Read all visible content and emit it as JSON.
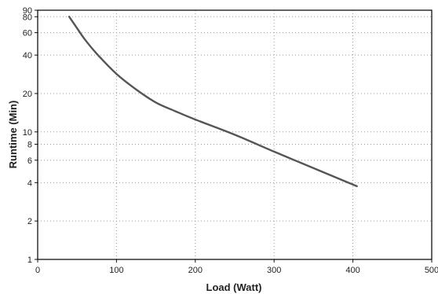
{
  "chart_data": {
    "type": "line",
    "title": "",
    "xlabel": "Load (Watt)",
    "ylabel": "Runtime (Min)",
    "xscale": "linear",
    "yscale": "log",
    "xlim": [
      0,
      500
    ],
    "ylim": [
      1,
      90
    ],
    "xticks": [
      0,
      100,
      200,
      300,
      400,
      500
    ],
    "xtick_labels": [
      "0",
      "100",
      "200",
      "300",
      "400",
      "500"
    ],
    "yticks": [
      1,
      2,
      4,
      6,
      8,
      10,
      20,
      40,
      60,
      80,
      90
    ],
    "ytick_labels": [
      "1",
      "2",
      "4",
      "6",
      "8",
      "10",
      "20",
      "40",
      "60",
      "80",
      "90"
    ],
    "grid": true,
    "series": [
      {
        "color": "#555555",
        "x": [
          40,
          50,
          60,
          75,
          100,
          125,
          150,
          175,
          200,
          250,
          300,
          350,
          405
        ],
        "y": [
          80,
          65,
          53,
          41,
          28.5,
          21.5,
          17,
          14.5,
          12.5,
          9.5,
          7,
          5.2,
          3.75
        ]
      }
    ]
  }
}
